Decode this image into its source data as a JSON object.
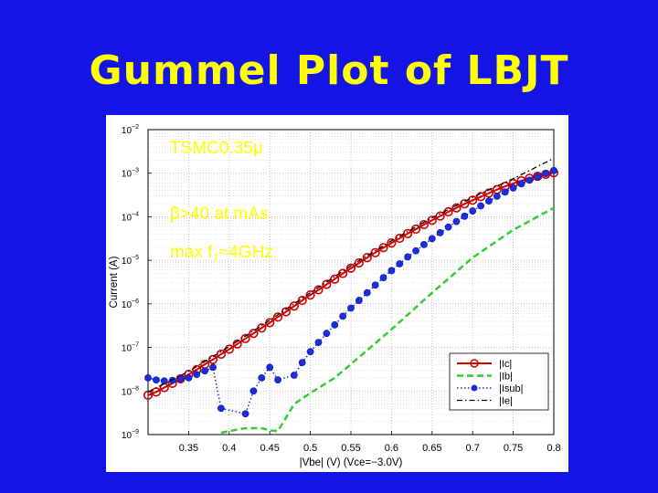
{
  "slide": {
    "title": "Gummel Plot of LBJT",
    "background_color": "#1414e6",
    "title_color": "#ffff00"
  },
  "annotations": {
    "process": "TSMC0.35μ",
    "beta": "β>40 at mAs",
    "ft_prefix": "max f",
    "ft_sub": "T",
    "ft_suffix": "≈4GHz"
  },
  "chart_data": {
    "type": "line",
    "title": "",
    "xlabel": "|Vbe| (V) (Vce=−3.0V)",
    "ylabel": "Current (A)",
    "xlim": [
      0.3,
      0.8
    ],
    "ylim": [
      1e-09,
      0.01
    ],
    "yscale": "log",
    "grid": true,
    "x_ticks": [
      "0.35",
      "0.4",
      "0.45",
      "0.5",
      "0.55",
      "0.6",
      "0.65",
      "0.7",
      "0.75",
      "0.8"
    ],
    "y_ticks": [
      {
        "base": "10",
        "exp": "−2"
      },
      {
        "base": "10",
        "exp": "−3"
      },
      {
        "base": "10",
        "exp": "−4"
      },
      {
        "base": "10",
        "exp": "−5"
      },
      {
        "base": "10",
        "exp": "−6"
      },
      {
        "base": "10",
        "exp": "−7"
      },
      {
        "base": "10",
        "exp": "−8"
      },
      {
        "base": "10",
        "exp": "−9"
      }
    ],
    "legend_position": "bottom-right",
    "series": [
      {
        "name": "|Ic|",
        "color": "#cc0000",
        "style": "solid-circles",
        "x": [
          0.3,
          0.31,
          0.32,
          0.33,
          0.34,
          0.35,
          0.36,
          0.37,
          0.38,
          0.39,
          0.4,
          0.41,
          0.42,
          0.43,
          0.44,
          0.45,
          0.46,
          0.47,
          0.48,
          0.49,
          0.5,
          0.51,
          0.52,
          0.53,
          0.54,
          0.55,
          0.56,
          0.57,
          0.58,
          0.59,
          0.6,
          0.61,
          0.62,
          0.63,
          0.64,
          0.65,
          0.66,
          0.67,
          0.68,
          0.69,
          0.7,
          0.71,
          0.72,
          0.73,
          0.74,
          0.75,
          0.76,
          0.77,
          0.78,
          0.79,
          0.8
        ],
        "y": [
          8e-09,
          9.5e-09,
          1.2e-08,
          1.5e-08,
          1.9e-08,
          2.4e-08,
          3.1e-08,
          4.1e-08,
          5.3e-08,
          7e-08,
          9.1e-08,
          1.2e-07,
          1.6e-07,
          2.1e-07,
          2.8e-07,
          3.7e-07,
          5e-07,
          6.6e-07,
          8.9e-07,
          1.2e-06,
          1.6e-06,
          2.1e-06,
          2.8e-06,
          3.7e-06,
          5e-06,
          6.6e-06,
          8.7e-06,
          1.15e-05,
          1.5e-05,
          1.95e-05,
          2.5e-05,
          3.2e-05,
          4.1e-05,
          5.2e-05,
          6.6e-05,
          8.3e-05,
          0.000104,
          0.00013,
          0.00016,
          0.000198,
          0.00024,
          0.00029,
          0.00035,
          0.00042,
          0.0005,
          0.00058,
          0.00067,
          0.00076,
          0.00085,
          0.00094,
          0.00103
        ]
      },
      {
        "name": "|Ib|",
        "color": "#33cc33",
        "style": "dashed",
        "x": [
          0.39,
          0.4,
          0.42,
          0.44,
          0.45,
          0.46,
          0.48,
          0.5,
          0.53,
          0.56,
          0.6,
          0.65,
          0.7,
          0.75,
          0.8
        ],
        "y": [
          1.1e-09,
          1.2e-09,
          1.4e-09,
          1.4e-09,
          1.25e-09,
          1.2e-09,
          5e-09,
          9e-09,
          2e-08,
          6e-08,
          2.6e-07,
          1.8e-06,
          1.15e-05,
          5e-05,
          0.00016
        ]
      },
      {
        "name": "|Isub|",
        "color": "#1a2ee0",
        "style": "dotted-circles",
        "x": [
          0.3,
          0.31,
          0.32,
          0.33,
          0.34,
          0.35,
          0.36,
          0.37,
          0.38,
          0.39,
          0.42,
          0.43,
          0.44,
          0.45,
          0.46,
          0.48,
          0.49,
          0.5,
          0.51,
          0.52,
          0.53,
          0.54,
          0.55,
          0.56,
          0.57,
          0.58,
          0.59,
          0.6,
          0.61,
          0.62,
          0.63,
          0.64,
          0.65,
          0.66,
          0.67,
          0.68,
          0.69,
          0.7,
          0.71,
          0.72,
          0.73,
          0.74,
          0.75,
          0.76,
          0.77,
          0.78,
          0.79,
          0.8
        ],
        "y": [
          2e-08,
          1.8e-08,
          1.7e-08,
          1.75e-08,
          1.9e-08,
          2e-08,
          2.4e-08,
          2.9e-08,
          3.5e-08,
          4e-09,
          3e-09,
          1e-08,
          2e-08,
          3.5e-08,
          1.8e-08,
          2.3e-08,
          4.5e-08,
          8e-08,
          1.3e-07,
          2.1e-07,
          3.3e-07,
          5.2e-07,
          8e-07,
          1.2e-06,
          1.8e-06,
          2.7e-06,
          4e-06,
          5.8e-06,
          8.3e-06,
          1.2e-05,
          1.65e-05,
          2.3e-05,
          3.15e-05,
          4.3e-05,
          5.8e-05,
          7.8e-05,
          0.000103,
          0.000136,
          0.000178,
          0.00023,
          0.000295,
          0.00037,
          0.00046,
          0.00057,
          0.00069,
          0.00083,
          0.00098,
          0.00115
        ]
      },
      {
        "name": "|Ie|",
        "color": "#000000",
        "style": "dash-dot",
        "x": [
          0.3,
          0.35,
          0.4,
          0.45,
          0.5,
          0.55,
          0.6,
          0.65,
          0.7,
          0.75,
          0.8
        ],
        "y": [
          9.5e-09,
          2.8e-08,
          1.05e-07,
          4.2e-07,
          1.8e-06,
          7.5e-06,
          2.8e-05,
          9.5e-05,
          0.00028,
          0.00075,
          0.0022
        ]
      }
    ]
  }
}
